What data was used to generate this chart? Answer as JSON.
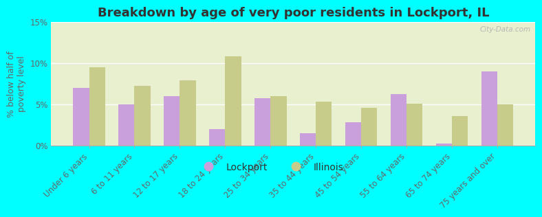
{
  "title": "Breakdown by age of very poor residents in Lockport, IL",
  "ylabel": "% below half of\npoverty level",
  "categories": [
    "Under 6 years",
    "6 to 11 years",
    "12 to 17 years",
    "18 to 24 years",
    "25 to 34 years",
    "35 to 44 years",
    "45 to 54 years",
    "55 to 64 years",
    "65 to 74 years",
    "75 years and over"
  ],
  "lockport_values": [
    7.0,
    5.0,
    6.0,
    2.0,
    5.7,
    1.5,
    2.8,
    6.2,
    0.2,
    9.0
  ],
  "illinois_values": [
    9.5,
    7.2,
    7.9,
    10.8,
    6.0,
    5.3,
    4.6,
    5.1,
    3.6,
    5.0
  ],
  "lockport_color": "#c9a0dc",
  "illinois_color": "#c8cc8a",
  "background_outer": "#00ffff",
  "background_plot": "#e8f0d0",
  "ylim": [
    0,
    15
  ],
  "yticks": [
    0,
    5,
    10,
    15
  ],
  "ytick_labels": [
    "0%",
    "5%",
    "10%",
    "15%"
  ],
  "title_fontsize": 13,
  "axis_label_fontsize": 9,
  "tick_fontsize": 8.5,
  "legend_fontsize": 10,
  "watermark": "City-Data.com"
}
